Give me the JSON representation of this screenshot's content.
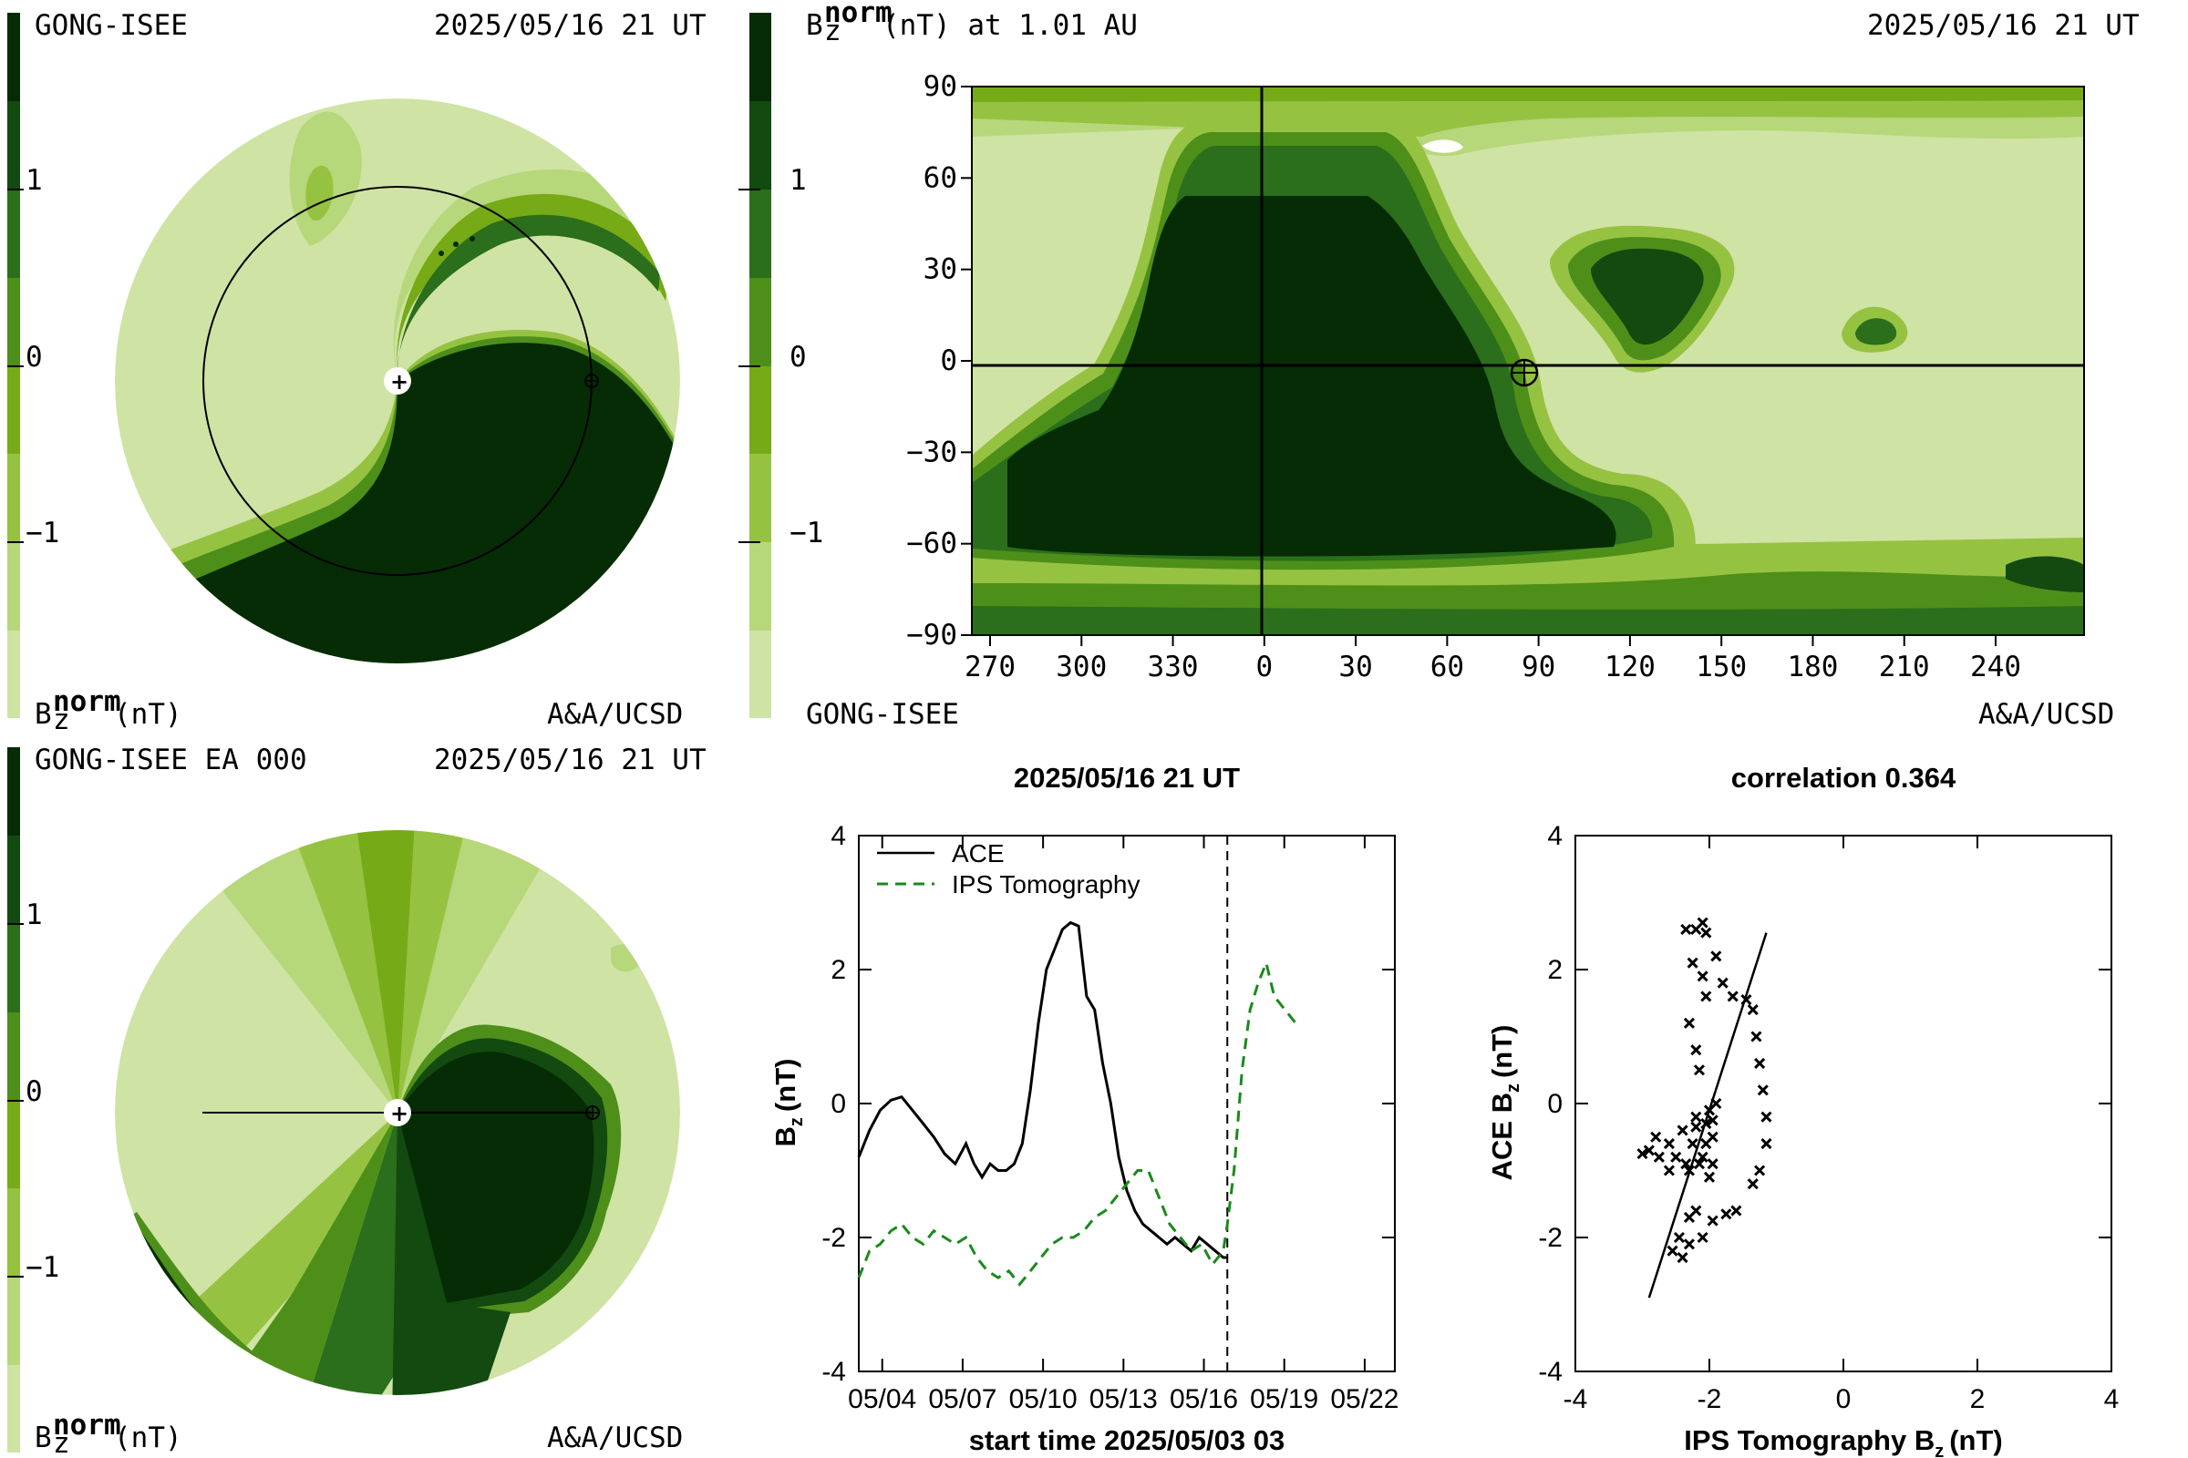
{
  "colors": {
    "c1": "#cfe3a4",
    "c2": "#b7d77b",
    "c3": "#96c241",
    "c4": "#76aa16",
    "c5": "#4e8f1a",
    "c6": "#2b6e1b",
    "c7": "#124a10",
    "c8": "#052c05",
    "ips_line": "#1a8a1a",
    "ace_line": "#000000"
  },
  "panels": {
    "top_left": {
      "left_label": "GONG-ISEE",
      "date_label": "2025/05/16 21 UT",
      "bottom_left_label": "B",
      "bottom_sup": "norm",
      "bottom_sub": "z",
      "bottom_unit": "(nT)",
      "credit": "A&A/UCSD"
    },
    "bottom_left": {
      "left_label": "GONG-ISEE EA 000",
      "date_label": "2025/05/16 21 UT",
      "bottom_left_label": "B",
      "bottom_sup": "norm",
      "bottom_sub": "z",
      "bottom_unit": "(nT)",
      "credit": "A&A/UCSD"
    },
    "colorbar": {
      "ticks": [
        "1",
        "0",
        "−1"
      ]
    },
    "map": {
      "title_b": "B",
      "title_sup": "norm",
      "title_sub": "z",
      "title_rest": "(nT) at 1.01 AU",
      "date_label": "2025/05/16 21 UT",
      "bottom_left": "GONG-ISEE",
      "credit": "A&A/UCSD",
      "x_ticks": [
        "270",
        "300",
        "330",
        "0",
        "30",
        "60",
        "90",
        "120",
        "150",
        "180",
        "210",
        "240"
      ],
      "y_ticks": [
        "90",
        "60",
        "30",
        "0",
        "−30",
        "−60",
        "−90"
      ]
    },
    "timeseries": {
      "title": "2025/05/16 21 UT",
      "ylabel_b": "B",
      "ylabel_sub": "z",
      "ylabel_unit": "(nT)",
      "xlabel": "start time 2025/05/03 03",
      "x_ticks": [
        "05/04",
        "05/07",
        "05/10",
        "05/13",
        "05/16",
        "05/19",
        "05/22"
      ],
      "y_ticks": [
        "4",
        "2",
        "0",
        "-2",
        "-4"
      ],
      "legend_ace": "ACE",
      "legend_ips": "IPS Tomography"
    },
    "scatter": {
      "title": "correlation 0.364",
      "ylabel_b": "ACE B",
      "ylabel_sub": "z",
      "ylabel_unit": "(nT)",
      "xlabel_b": "IPS Tomography B",
      "xlabel_sub": "z",
      "xlabel_unit": "(nT)",
      "x_ticks": [
        "-4",
        "-2",
        "0",
        "2",
        "4"
      ],
      "y_ticks": [
        "4",
        "2",
        "0",
        "-2",
        "-4"
      ]
    }
  },
  "chart_data": [
    {
      "type": "line",
      "title": "2025/05/16 21 UT",
      "xlabel": "start time 2025/05/03 03",
      "ylabel": "Bz (nT)",
      "x_unit": "days since start (2025/05/03 03 UT)",
      "xlim": [
        0,
        20
      ],
      "ylim": [
        -4,
        4
      ],
      "current_time_marker_day": 13.75,
      "series": [
        {
          "name": "ACE",
          "style": "solid",
          "x": [
            0.0,
            0.4,
            0.8,
            1.2,
            1.6,
            2.0,
            2.4,
            2.8,
            3.2,
            3.6,
            4.0,
            4.3,
            4.6,
            4.9,
            5.2,
            5.5,
            5.8,
            6.1,
            6.4,
            6.7,
            7.0,
            7.3,
            7.6,
            7.9,
            8.2,
            8.5,
            8.8,
            9.1,
            9.4,
            9.7,
            10.0,
            10.3,
            10.6,
            10.9,
            11.2,
            11.5,
            11.8,
            12.1,
            12.4,
            12.7,
            13.0,
            13.3,
            13.6,
            13.75
          ],
          "values": [
            -0.8,
            -0.4,
            -0.1,
            0.05,
            0.1,
            -0.1,
            -0.3,
            -0.5,
            -0.75,
            -0.9,
            -0.6,
            -0.9,
            -1.1,
            -0.9,
            -1.0,
            -1.0,
            -0.9,
            -0.6,
            0.2,
            1.2,
            2.0,
            2.3,
            2.6,
            2.7,
            2.65,
            1.6,
            1.4,
            0.6,
            0.0,
            -0.8,
            -1.3,
            -1.6,
            -1.8,
            -1.9,
            -2.0,
            -2.1,
            -2.0,
            -2.1,
            -2.2,
            -2.0,
            -2.1,
            -2.2,
            -2.3,
            -2.3
          ]
        },
        {
          "name": "IPS Tomography",
          "style": "dashed",
          "x": [
            0.0,
            0.4,
            0.8,
            1.2,
            1.6,
            2.0,
            2.4,
            2.8,
            3.2,
            3.6,
            4.0,
            4.4,
            4.8,
            5.2,
            5.6,
            6.0,
            6.4,
            6.8,
            7.2,
            7.6,
            8.0,
            8.4,
            8.8,
            9.2,
            9.6,
            10.0,
            10.4,
            10.8,
            11.2,
            11.6,
            12.0,
            12.4,
            12.8,
            13.2,
            13.6,
            13.75,
            14.0,
            14.3,
            14.6,
            14.9,
            15.2,
            15.5,
            15.9,
            16.3
          ],
          "values": [
            -2.6,
            -2.2,
            -2.1,
            -1.9,
            -1.8,
            -2.0,
            -2.1,
            -1.9,
            -2.0,
            -2.1,
            -2.0,
            -2.3,
            -2.5,
            -2.6,
            -2.5,
            -2.7,
            -2.5,
            -2.3,
            -2.1,
            -2.0,
            -2.0,
            -1.9,
            -1.7,
            -1.6,
            -1.4,
            -1.2,
            -1.0,
            -1.0,
            -1.4,
            -1.8,
            -2.0,
            -2.2,
            -2.1,
            -2.4,
            -2.2,
            -1.8,
            -1.0,
            0.5,
            1.4,
            1.8,
            2.1,
            1.6,
            1.4,
            1.2
          ]
        }
      ]
    },
    {
      "type": "scatter",
      "title": "correlation 0.364",
      "xlabel": "IPS Tomography Bz (nT)",
      "ylabel": "ACE Bz (nT)",
      "xlim": [
        -4,
        4
      ],
      "ylim": [
        -4,
        4
      ],
      "fit_line": {
        "x": [
          -2.9,
          -1.15
        ],
        "y": [
          -2.9,
          2.55
        ]
      },
      "points": [
        [
          -2.35,
          2.6
        ],
        [
          -2.2,
          2.6
        ],
        [
          -2.1,
          2.7
        ],
        [
          -2.05,
          2.55
        ],
        [
          -2.25,
          2.1
        ],
        [
          -2.1,
          1.9
        ],
        [
          -2.05,
          1.6
        ],
        [
          -2.3,
          1.2
        ],
        [
          -2.2,
          0.8
        ],
        [
          -2.15,
          0.5
        ],
        [
          -1.9,
          2.2
        ],
        [
          -1.8,
          1.8
        ],
        [
          -1.65,
          1.6
        ],
        [
          -1.45,
          1.55
        ],
        [
          -1.35,
          1.4
        ],
        [
          -1.3,
          1.0
        ],
        [
          -1.25,
          0.6
        ],
        [
          -1.2,
          0.2
        ],
        [
          -1.15,
          -0.2
        ],
        [
          -1.15,
          -0.6
        ],
        [
          -1.25,
          -1.0
        ],
        [
          -1.35,
          -1.2
        ],
        [
          -1.6,
          -1.6
        ],
        [
          -1.75,
          -1.65
        ],
        [
          -1.95,
          -1.75
        ],
        [
          -2.1,
          -2.0
        ],
        [
          -2.3,
          -2.1
        ],
        [
          -2.45,
          -2.0
        ],
        [
          -2.55,
          -2.2
        ],
        [
          -2.4,
          -2.3
        ],
        [
          -2.3,
          -1.7
        ],
        [
          -2.2,
          -1.6
        ],
        [
          -2.05,
          -0.3
        ],
        [
          -2.0,
          -0.1
        ],
        [
          -1.9,
          0.0
        ],
        [
          -1.95,
          -0.5
        ],
        [
          -2.1,
          -0.8
        ],
        [
          -2.25,
          -0.6
        ],
        [
          -2.35,
          -0.9
        ],
        [
          -2.5,
          -0.8
        ],
        [
          -2.6,
          -1.0
        ],
        [
          -2.75,
          -0.8
        ],
        [
          -2.9,
          -0.7
        ],
        [
          -3.0,
          -0.75
        ],
        [
          -2.8,
          -0.5
        ],
        [
          -2.6,
          -0.6
        ],
        [
          -2.4,
          -0.4
        ],
        [
          -2.2,
          -0.2
        ],
        [
          -2.05,
          -0.6
        ],
        [
          -1.95,
          -0.9
        ],
        [
          -2.0,
          -1.1
        ],
        [
          -2.15,
          -0.9
        ],
        [
          -2.3,
          -1.0
        ],
        [
          -2.2,
          -0.35
        ],
        [
          -1.95,
          -0.25
        ]
      ]
    }
  ]
}
